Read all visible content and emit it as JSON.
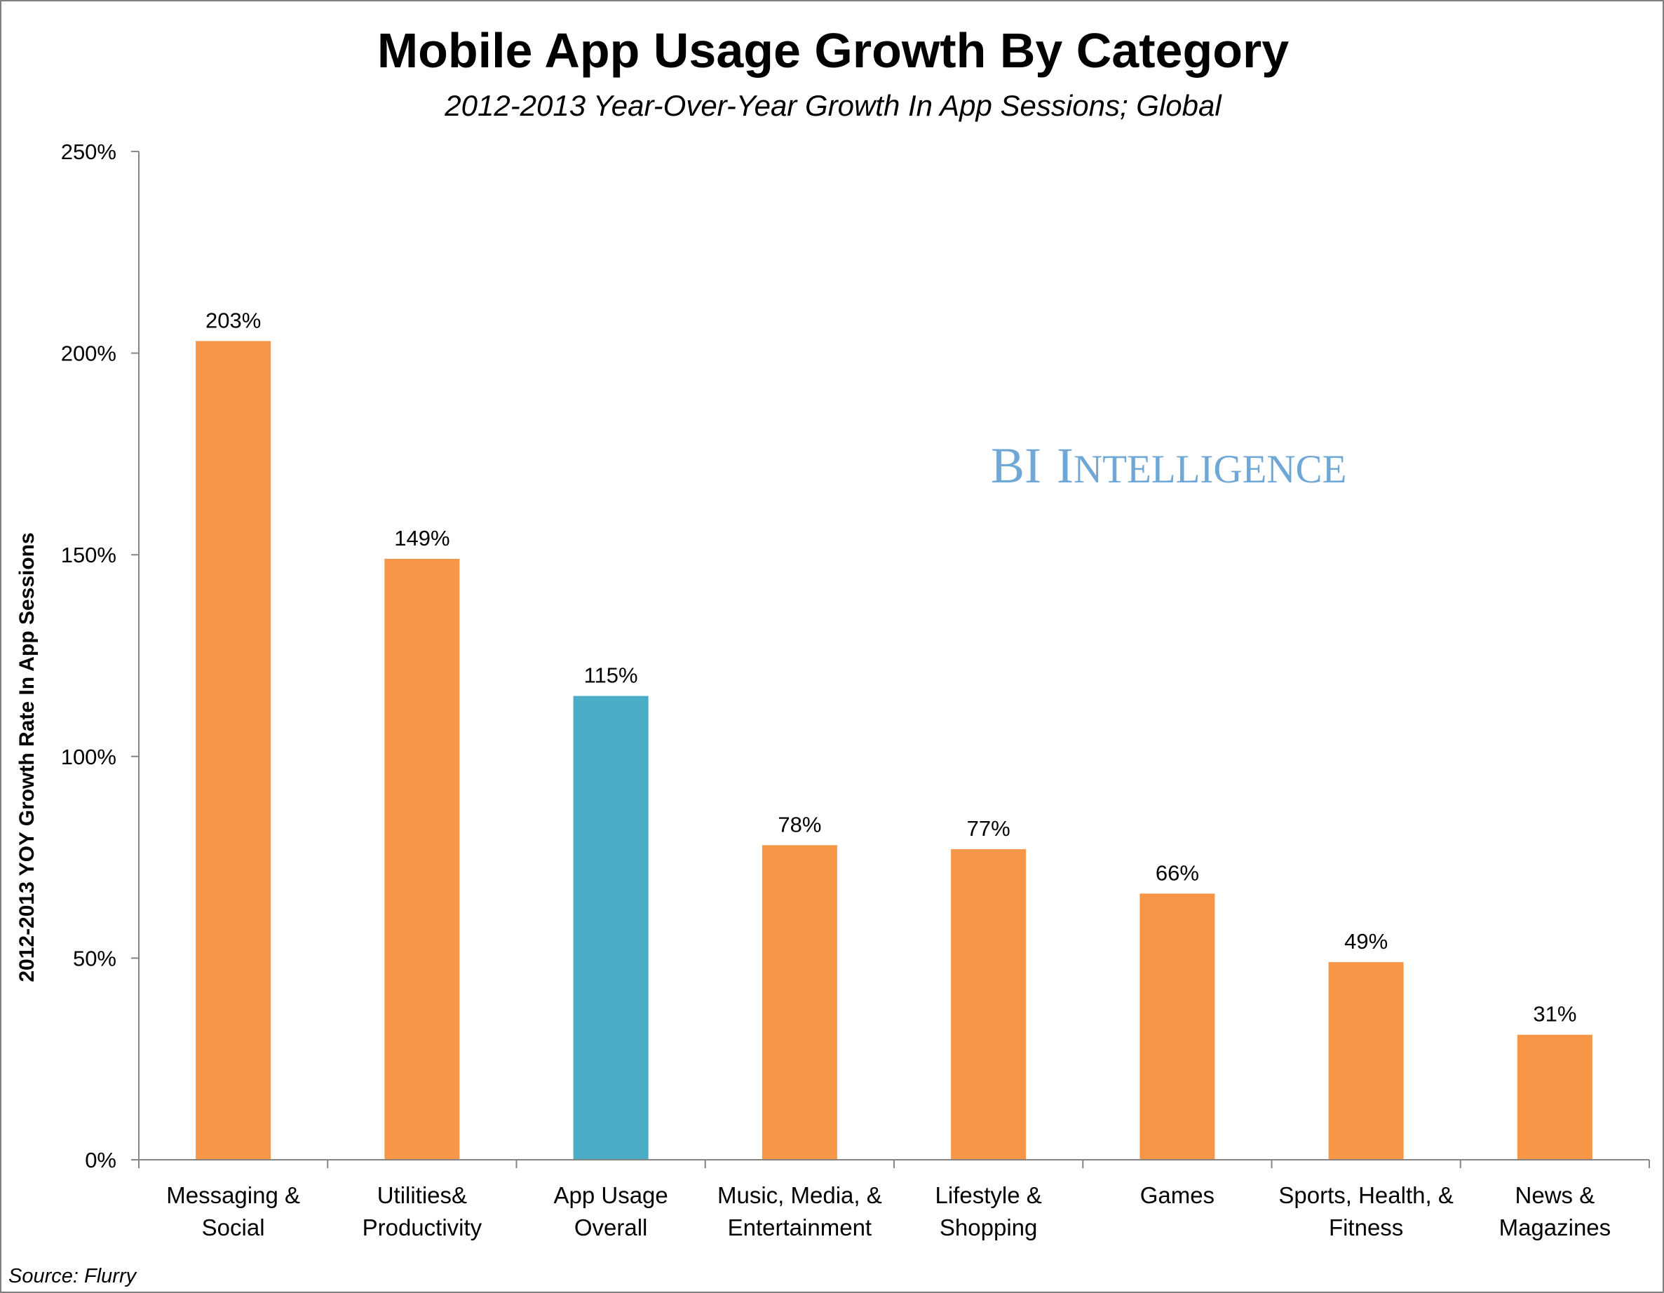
{
  "chart_data": {
    "type": "bar",
    "title": "Mobile App Usage Growth By Category",
    "subtitle": "2012-2013 Year-Over-Year Growth In App Sessions; Global",
    "ylabel": "2012-2013 YOY Growth Rate In App Sessions",
    "xlabel": "",
    "ylim": [
      0,
      250
    ],
    "yticks": [
      "0%",
      "50%",
      "100%",
      "150%",
      "200%",
      "250%"
    ],
    "ytick_values": [
      0,
      50,
      100,
      150,
      200,
      250
    ],
    "categories": [
      [
        "Messaging &",
        "Social"
      ],
      [
        "Utilities&",
        "Productivity"
      ],
      [
        "App Usage",
        "Overall"
      ],
      [
        "Music, Media, &",
        "Entertainment"
      ],
      [
        "Lifestyle &",
        "Shopping"
      ],
      [
        "Games"
      ],
      [
        "Sports, Health, &",
        "Fitness"
      ],
      [
        "News &",
        "Magazines"
      ]
    ],
    "values": [
      203,
      149,
      115,
      78,
      77,
      66,
      49,
      31
    ],
    "data_labels": [
      "203%",
      "149%",
      "115%",
      "78%",
      "77%",
      "66%",
      "49%",
      "31%"
    ],
    "highlight_index": 2,
    "colors": {
      "bar": "#f79646",
      "highlight": "#4bacc6",
      "axis": "#868686"
    },
    "grid": false,
    "legend": "none"
  },
  "watermark": {
    "text_big1": "BI",
    "text_big2": "I",
    "text_small": "NTELLIGENCE",
    "color": "#6fa8d6"
  },
  "source": "Source: Flurry"
}
